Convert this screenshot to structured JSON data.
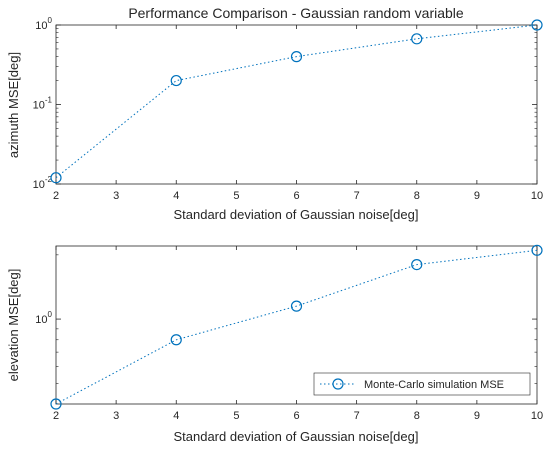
{
  "chart_data": [
    {
      "type": "line",
      "title": "Performance Comparison - Gaussian random variable",
      "xlabel": "Standard deviation of Gaussian noise[deg]",
      "ylabel": "azimuth MSE[deg]",
      "x": [
        2,
        4,
        6,
        8,
        10
      ],
      "series": [
        {
          "values": [
            0.012,
            0.2,
            0.4,
            0.67,
            1.0
          ]
        }
      ],
      "xlim": [
        2,
        10
      ],
      "ylim": [
        0.01,
        1
      ],
      "yscale": "log",
      "xticks": [
        "2",
        "3",
        "4",
        "5",
        "6",
        "7",
        "8",
        "9",
        "10"
      ],
      "yticks": [
        {
          "value": 0.01,
          "base": "10",
          "exp": "-2"
        },
        {
          "value": 0.1,
          "base": "10",
          "exp": "-1"
        },
        {
          "value": 1,
          "base": "10",
          "exp": "0"
        }
      ],
      "grid": false,
      "legend": "none",
      "color": "#0072BD"
    },
    {
      "type": "line",
      "title": "",
      "xlabel": "Standard deviation of Gaussian noise[deg]",
      "ylabel": "elevation MSE[deg]",
      "x": [
        2,
        4,
        6,
        8,
        10
      ],
      "series": [
        {
          "name": "Monte-Carlo simulation MSE",
          "values": [
            0.4,
            0.8,
            1.15,
            1.8,
            2.1
          ]
        }
      ],
      "xlim": [
        2,
        10
      ],
      "ylim": [
        0.4,
        2.2
      ],
      "yscale": "log",
      "xticks": [
        "2",
        "3",
        "4",
        "5",
        "6",
        "7",
        "8",
        "9",
        "10"
      ],
      "yticks": [
        {
          "value": 1,
          "base": "10",
          "exp": "0"
        }
      ],
      "grid": false,
      "legend": "bottom-right",
      "color": "#0072BD"
    }
  ]
}
